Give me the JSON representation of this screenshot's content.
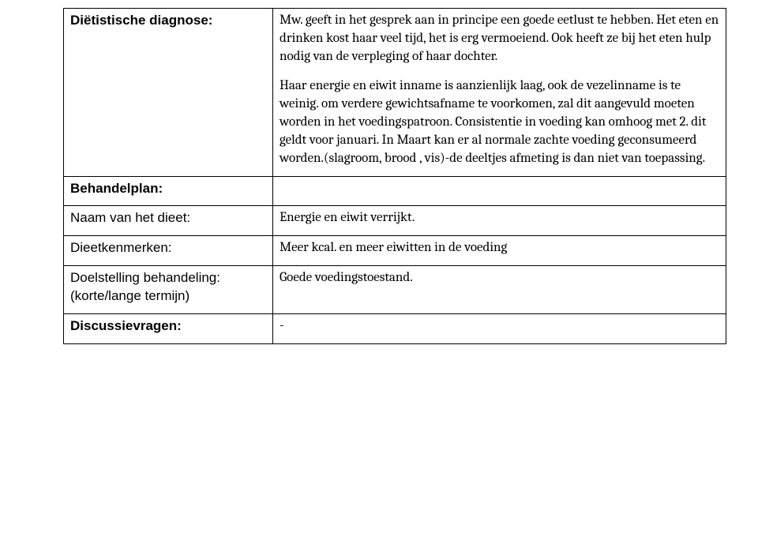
{
  "rows": {
    "diagnose": {
      "label": "Diëtistische diagnose:",
      "p1": "Mw. geeft in het gesprek aan in principe een goede eetlust te hebben. Het eten en drinken kost haar veel tijd, het is erg vermoeiend. Ook heeft ze bij het eten hulp nodig van de verpleging of haar dochter.",
      "p2": "Haar energie en eiwit inname is aanzienlijk laag, ook de vezelinname is te weinig. om verdere gewichtsafname te voorkomen, zal dit aangevuld moeten worden in het voedingspatroon. Consistentie in voeding kan omhoog met 2. dit geldt voor januari. In Maart kan er al normale zachte voeding geconsumeerd worden.(slagroom, brood , vis)-de deeltjes afmeting is dan niet van toepassing."
    },
    "behandelplan": {
      "label": "Behandelplan:"
    },
    "dieetnaam": {
      "label": "Naam van het dieet:",
      "value": "Energie en eiwit verrijkt."
    },
    "dieetkenmerken": {
      "label": "Dieetkenmerken:",
      "value": "Meer kcal. en meer eiwitten in de voeding"
    },
    "doelstelling": {
      "label_line1": "Doelstelling behandeling:",
      "label_line2": "(korte/lange termijn)",
      "value": "Goede voedingstoestand."
    },
    "discussie": {
      "label": "Discussievragen:",
      "value": "-"
    }
  }
}
